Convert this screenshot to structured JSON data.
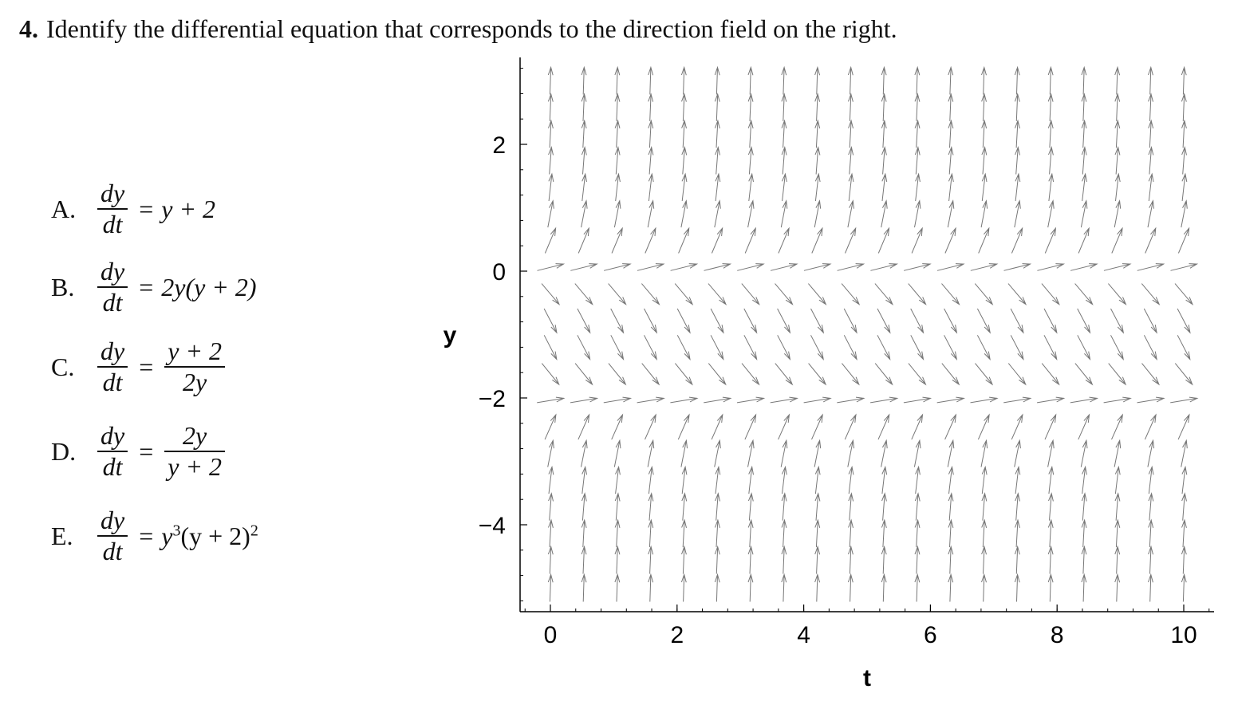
{
  "question": {
    "number": "4.",
    "text": "Identify the differential equation that corresponds to the direction field on the right."
  },
  "options": [
    {
      "letter": "A.",
      "lhs_num": "dy",
      "lhs_den": "dt",
      "rhs": "y + 2",
      "rhs_type": "inline"
    },
    {
      "letter": "B.",
      "lhs_num": "dy",
      "lhs_den": "dt",
      "rhs": "2y(y + 2)",
      "rhs_type": "inline"
    },
    {
      "letter": "C.",
      "lhs_num": "dy",
      "lhs_den": "dt",
      "rhs_num": "y + 2",
      "rhs_den": "2y",
      "rhs_type": "fraction"
    },
    {
      "letter": "D.",
      "lhs_num": "dy",
      "lhs_den": "dt",
      "rhs_num": "2y",
      "rhs_den": "y + 2",
      "rhs_type": "fraction"
    },
    {
      "letter": "E.",
      "lhs_num": "dy",
      "lhs_den": "dt",
      "rhs_base1": "y",
      "rhs_exp1": "3",
      "rhs_base2": "(y + 2)",
      "rhs_exp2": "2",
      "rhs_type": "powers"
    }
  ],
  "chart_data": {
    "type": "direction-field",
    "xlabel": "t",
    "ylabel": "y",
    "xlim": [
      -0.5,
      10.5
    ],
    "ylim": [
      -5.3,
      3.4
    ],
    "xticks": [
      "0",
      "2",
      "4",
      "6",
      "8",
      "10"
    ],
    "yticks": [
      "2",
      "0",
      "−2",
      "−4"
    ],
    "t_values": [
      0,
      0.526,
      1.053,
      1.579,
      2.105,
      2.632,
      3.158,
      3.684,
      4.211,
      4.737,
      5.263,
      5.789,
      6.316,
      6.842,
      7.368,
      7.895,
      8.421,
      8.947,
      9.474,
      10
    ],
    "y_values": [
      3.0,
      2.58,
      2.16,
      1.74,
      1.32,
      0.9,
      0.48,
      0.06,
      -0.36,
      -0.78,
      -1.2,
      -1.62,
      -2.04,
      -2.46,
      -2.88,
      -3.3,
      -3.72,
      -4.14,
      -4.56,
      -5.0
    ],
    "slope_function": "dy/dt = 2y(y + 2)",
    "arrow_color": "#777777"
  }
}
